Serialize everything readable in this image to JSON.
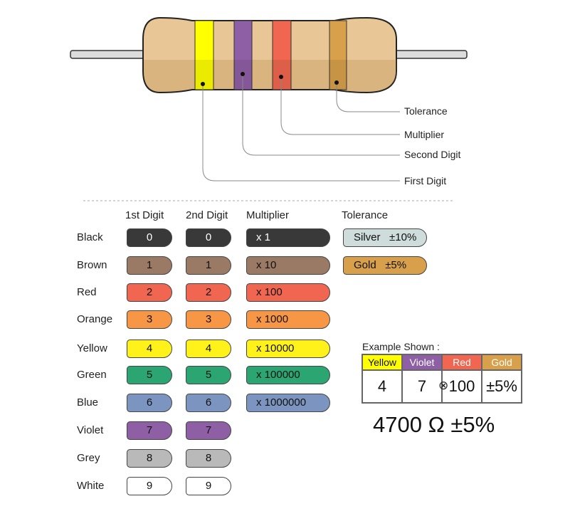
{
  "diagram": {
    "callouts": {
      "tolerance": "Tolerance",
      "multiplier": "Multiplier",
      "second_digit": "Second Digit",
      "first_digit": "First Digit"
    },
    "resistor_bands": [
      {
        "name": "Yellow",
        "color": "#ffff00"
      },
      {
        "name": "Violet",
        "color": "#8f5fa5"
      },
      {
        "name": "Red",
        "color": "#f06650"
      },
      {
        "name": "Gold",
        "color": "#d8a04a"
      }
    ],
    "body_color": "#e8c695"
  },
  "table": {
    "headers": {
      "first": "1st Digit",
      "second": "2nd Digit",
      "multiplier": "Multiplier",
      "tolerance": "Tolerance"
    },
    "rows": [
      {
        "name": "Black",
        "d1": "0",
        "d2": "0",
        "mult": "x 1",
        "color": "#3a393a",
        "text": "#ffffff"
      },
      {
        "name": "Brown",
        "d1": "1",
        "d2": "1",
        "mult": "x 10",
        "color": "#9a7a65",
        "text": "#111111"
      },
      {
        "name": "Red",
        "d1": "2",
        "d2": "2",
        "mult": "x 100",
        "color": "#f06650",
        "text": "#111111"
      },
      {
        "name": "Orange",
        "d1": "3",
        "d2": "3",
        "mult": "x 1000",
        "color": "#f79645",
        "text": "#111111"
      },
      {
        "name": "Yellow",
        "d1": "4",
        "d2": "4",
        "mult": "x 10000",
        "color": "#fff21a",
        "text": "#111111"
      },
      {
        "name": "Green",
        "d1": "5",
        "d2": "5",
        "mult": "x 100000",
        "color": "#2ba673",
        "text": "#111111"
      },
      {
        "name": "Blue",
        "d1": "6",
        "d2": "6",
        "mult": "x 1000000",
        "color": "#7b95c0",
        "text": "#111111"
      },
      {
        "name": "Violet",
        "d1": "7",
        "d2": "7",
        "color": "#8f5fa5",
        "text": "#111111"
      },
      {
        "name": "Grey",
        "d1": "8",
        "d2": "8",
        "color": "#b9b9ba",
        "text": "#111111"
      },
      {
        "name": "White",
        "d1": "9",
        "d2": "9",
        "color": "#ffffff",
        "text": "#111111"
      }
    ],
    "tolerance": [
      {
        "name": "Silver",
        "value": "±10%",
        "color": "#cfdcdc"
      },
      {
        "name": "Gold",
        "value": "±5%",
        "color": "#d8a04a"
      }
    ]
  },
  "example": {
    "title": "Example Shown :",
    "bands": [
      "Yellow",
      "Violet",
      "Red",
      "Gold"
    ],
    "band_colors": [
      "#ffff00",
      "#8f5fa5",
      "#f06650",
      "#d8a04a"
    ],
    "band_text_colors": [
      "#111111",
      "#ffffff",
      "#ffffff",
      "#ffffff"
    ],
    "values": [
      "4",
      "7",
      "100",
      "±5%"
    ],
    "times_symbol": "⊗",
    "result": "4700 Ω ±5%"
  }
}
